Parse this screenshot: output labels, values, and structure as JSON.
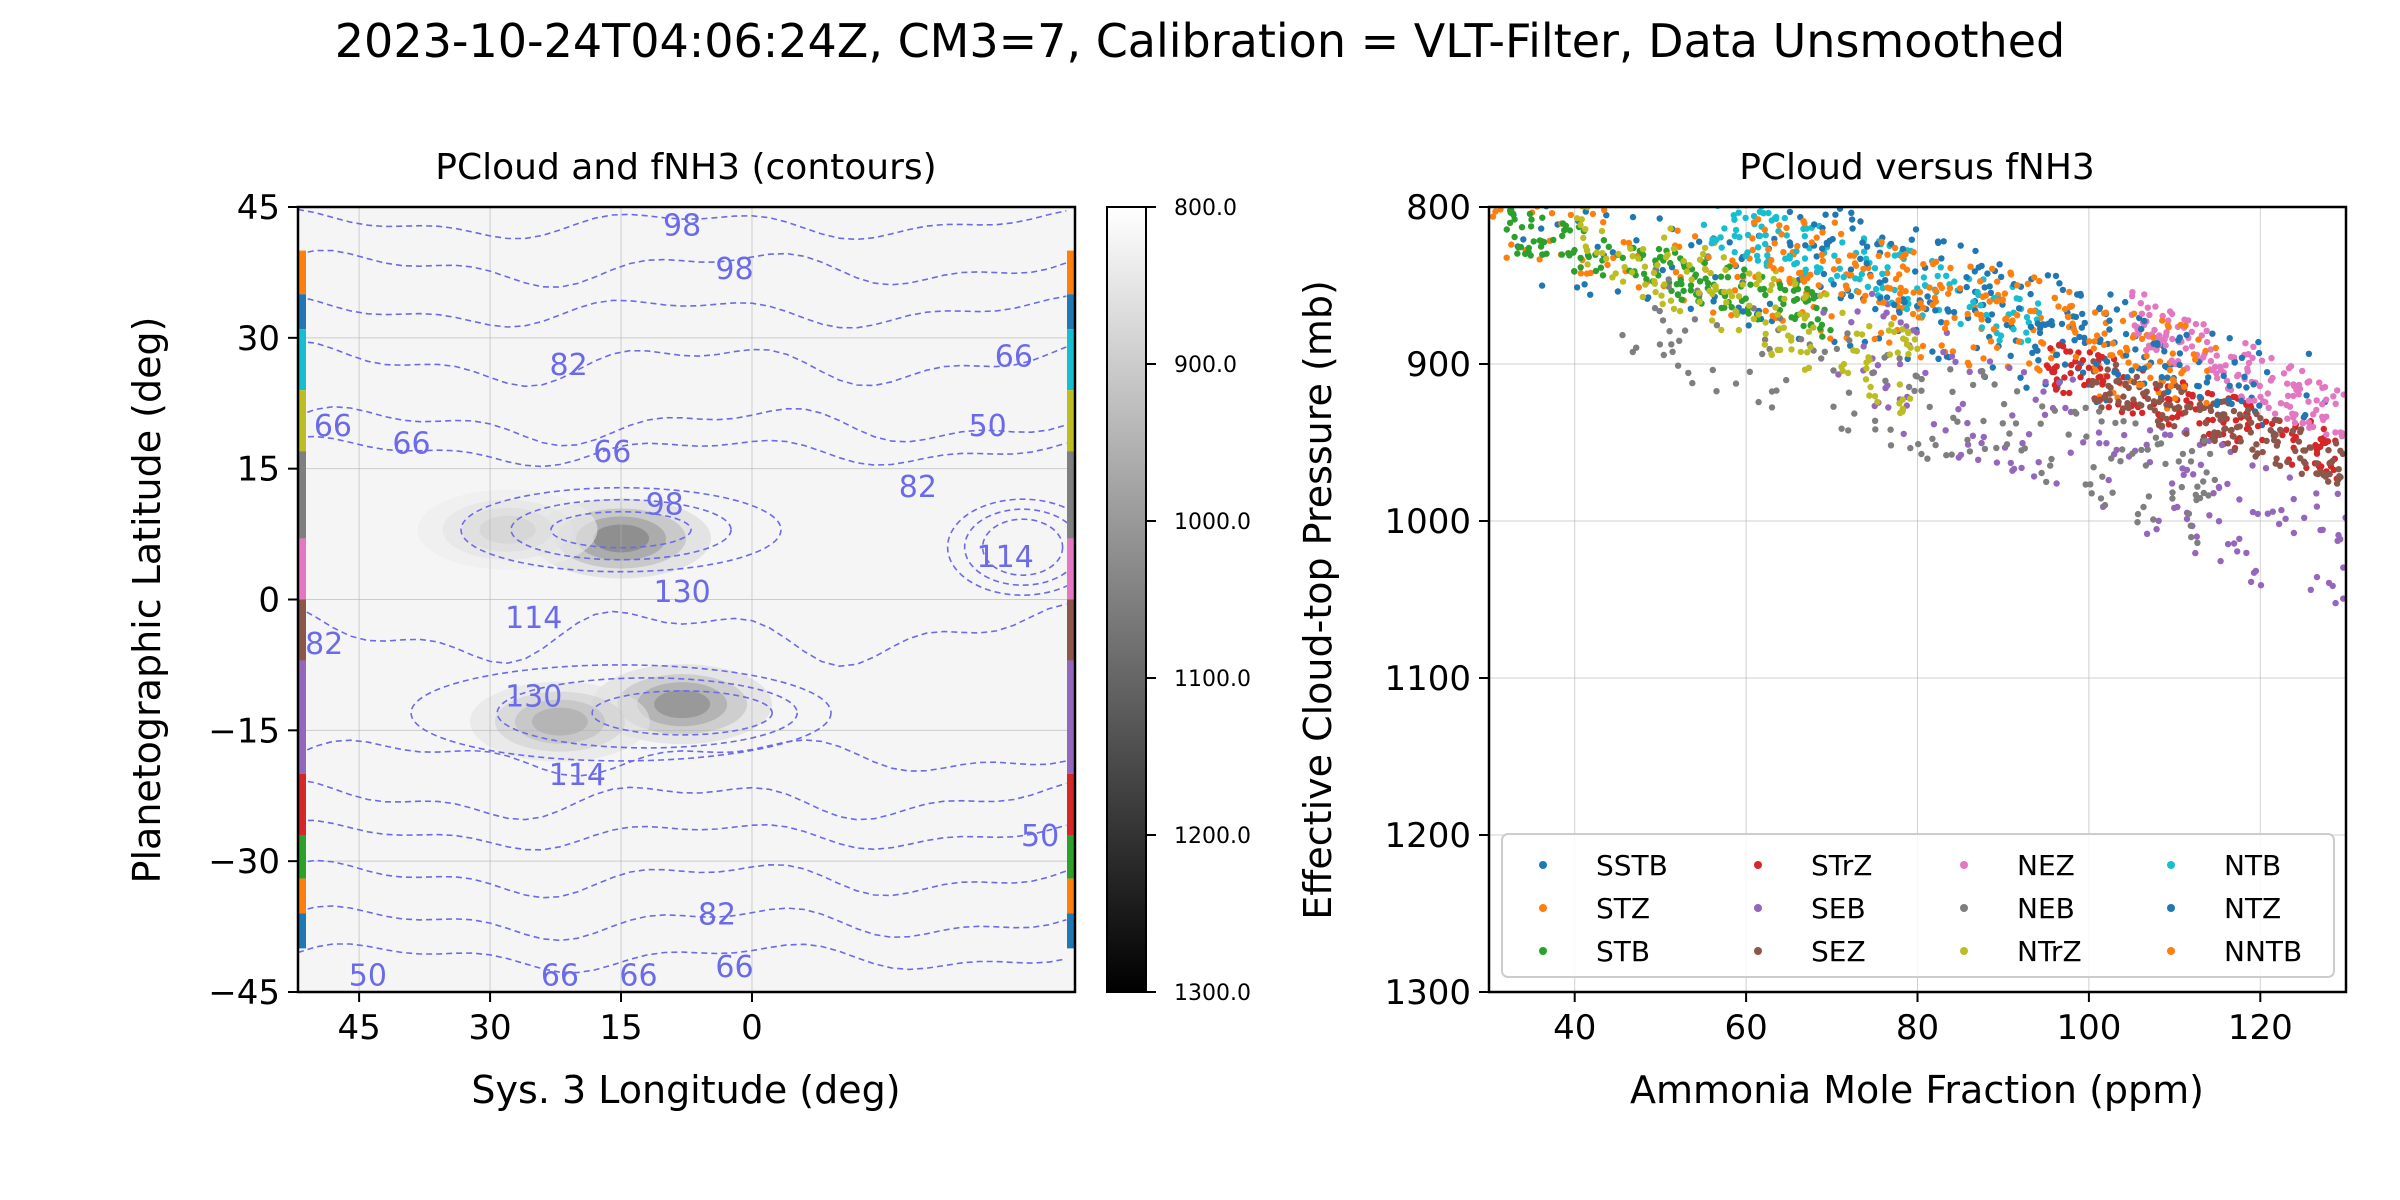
{
  "suptitle": "2023-10-24T04:06:24Z, CM3=7, Calibration = VLT-Filter, Data Unsmoothed",
  "colors": {
    "contour": "#6b6bea",
    "SSTB": "#1f77b4",
    "STZ": "#ff7f0e",
    "STB": "#2ca02c",
    "STrZ": "#d62728",
    "SEB": "#9467bd",
    "SEZ": "#8c564b",
    "NEZ": "#e377c2",
    "NEB": "#7f7f7f",
    "NTrZ": "#bcbd22",
    "NTB": "#17becf",
    "NTZ": "#1f77b4",
    "NNTB": "#ff7f0e"
  },
  "chart_data": [
    {
      "type": "heatmap",
      "title": "PCloud and fNH3 (contours)",
      "xlabel": "Sys. 3 Longitude (deg)",
      "ylabel": "Planetographic Latitude (deg)",
      "xticks": [
        "45",
        "30",
        "15",
        "0"
      ],
      "xtick_values": [
        45,
        30,
        15,
        0
      ],
      "xlim": [
        52,
        -37
      ],
      "yticks": [
        "45",
        "30",
        "15",
        "0",
        "−15",
        "−30",
        "−45"
      ],
      "ylim": [
        -45,
        45
      ],
      "grid": true,
      "colorbar": {
        "ticks": [
          "800.0",
          "900.0",
          "1000.0",
          "1100.0",
          "1200.0",
          "1300.0"
        ],
        "range": [
          800,
          1300
        ],
        "cmap": "gray_r"
      },
      "dark_regions": [
        {
          "lon": 15,
          "lat": 7,
          "pcloud": 1130
        },
        {
          "lon": 8,
          "lat": -12,
          "pcloud": 1110
        },
        {
          "lon": 22,
          "lat": -14,
          "pcloud": 1050
        },
        {
          "lon": 28,
          "lat": 8,
          "pcloud": 980
        }
      ],
      "contour_levels": [
        50,
        66,
        82,
        98,
        114,
        130
      ],
      "contour_labels": [
        {
          "text": "98",
          "lon": 8,
          "lat": 43
        },
        {
          "text": "98",
          "lon": 2,
          "lat": 38
        },
        {
          "text": "82",
          "lon": 21,
          "lat": 27
        },
        {
          "text": "66",
          "lon": -30,
          "lat": 28
        },
        {
          "text": "66",
          "lon": 48,
          "lat": 20
        },
        {
          "text": "66",
          "lon": 39,
          "lat": 18
        },
        {
          "text": "50",
          "lon": -27,
          "lat": 20
        },
        {
          "text": "66",
          "lon": 16,
          "lat": 17
        },
        {
          "text": "82",
          "lon": -19,
          "lat": 13
        },
        {
          "text": "98",
          "lon": 10,
          "lat": 11
        },
        {
          "text": "114",
          "lon": -29,
          "lat": 5
        },
        {
          "text": "130",
          "lon": 8,
          "lat": 1
        },
        {
          "text": "114",
          "lon": 25,
          "lat": -2
        },
        {
          "text": "82",
          "lon": 49,
          "lat": -5
        },
        {
          "text": "130",
          "lon": 25,
          "lat": -11
        },
        {
          "text": "114",
          "lon": 20,
          "lat": -20
        },
        {
          "text": "50",
          "lon": -33,
          "lat": -27
        },
        {
          "text": "82",
          "lon": 4,
          "lat": -36
        },
        {
          "text": "50",
          "lon": 44,
          "lat": -43
        },
        {
          "text": "66",
          "lon": 22,
          "lat": -43
        },
        {
          "text": "66",
          "lon": 13,
          "lat": -43
        },
        {
          "text": "66",
          "lon": 2,
          "lat": -42
        }
      ],
      "belt_bands": [
        {
          "name": "NNTB",
          "lat": [
            35,
            40
          ]
        },
        {
          "name": "NTZ",
          "lat": [
            31,
            35
          ]
        },
        {
          "name": "NTB",
          "lat": [
            24,
            31
          ]
        },
        {
          "name": "NTrZ",
          "lat": [
            17,
            24
          ]
        },
        {
          "name": "NEB",
          "lat": [
            7,
            17
          ]
        },
        {
          "name": "NEZ",
          "lat": [
            0,
            7
          ]
        },
        {
          "name": "SEZ",
          "lat": [
            -7,
            0
          ]
        },
        {
          "name": "SEB",
          "lat": [
            -20,
            -7
          ]
        },
        {
          "name": "STrZ",
          "lat": [
            -27,
            -20
          ]
        },
        {
          "name": "STB",
          "lat": [
            -32,
            -27
          ]
        },
        {
          "name": "STZ",
          "lat": [
            -36,
            -32
          ]
        },
        {
          "name": "SSTB",
          "lat": [
            -40,
            -36
          ]
        }
      ]
    },
    {
      "type": "scatter",
      "title": "PCloud versus fNH3",
      "xlabel": "Ammonia Mole Fraction (ppm)",
      "ylabel": "Effective Cloud-top Pressure (mb)",
      "xticks": [
        "40",
        "60",
        "80",
        "100",
        "120"
      ],
      "xtick_values": [
        40,
        60,
        80,
        100,
        120
      ],
      "xlim": [
        30,
        130
      ],
      "yticks": [
        "800",
        "900",
        "1000",
        "1100",
        "1200",
        "1300"
      ],
      "ytick_values": [
        800,
        900,
        1000,
        1100,
        1200,
        1300
      ],
      "ylim": [
        1300,
        800
      ],
      "grid": true,
      "legend_position": "lower center",
      "series": [
        {
          "name": "SSTB",
          "cloud": {
            "x": [
              32,
              128
            ],
            "y": [
              815,
              925
            ]
          }
        },
        {
          "name": "STZ",
          "cloud": {
            "x": [
              30,
              110
            ],
            "y": [
              812,
              905
            ]
          }
        },
        {
          "name": "STB",
          "cloud": {
            "x": [
              32,
              70
            ],
            "y": [
              815,
              870
            ]
          }
        },
        {
          "name": "STrZ",
          "cloud": {
            "x": [
              95,
              130
            ],
            "y": [
              900,
              960
            ]
          }
        },
        {
          "name": "SEB",
          "cloud": {
            "x": [
              68,
              130
            ],
            "y": [
              880,
              1025
            ]
          }
        },
        {
          "name": "SEZ",
          "cloud": {
            "x": [
              100,
              130
            ],
            "y": [
              910,
              965
            ]
          }
        },
        {
          "name": "NEZ",
          "cloud": {
            "x": [
              105,
              130
            ],
            "y": [
              870,
              935
            ]
          }
        },
        {
          "name": "NEB",
          "cloud": {
            "x": [
              45,
              115
            ],
            "y": [
              865,
              985
            ]
          }
        },
        {
          "name": "NTrZ",
          "cloud": {
            "x": [
              40,
              80
            ],
            "y": [
              810,
              910
            ]
          }
        },
        {
          "name": "NTB",
          "cloud": {
            "x": [
              55,
              95
            ],
            "y": [
              805,
              875
            ]
          }
        },
        {
          "name": "NTZ",
          "cloud": {
            "x": [
              65,
              120
            ],
            "y": [
              815,
              910
            ]
          }
        },
        {
          "name": "NNTB",
          "cloud": {
            "x": [
              60,
              115
            ],
            "y": [
              815,
              905
            ]
          }
        }
      ]
    }
  ]
}
